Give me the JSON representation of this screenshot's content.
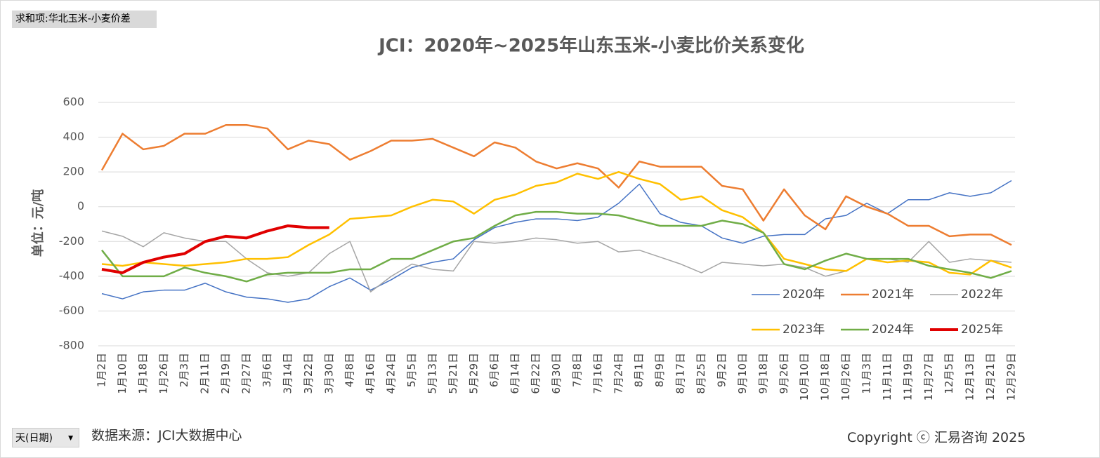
{
  "header": {
    "filter_button": "求和项:华北玉米-小麦价差",
    "field_button": "天(日期)"
  },
  "footer": {
    "source": "数据来源：JCI大数据中心",
    "copyright": "Copyright ⓒ 汇易咨询 2025"
  },
  "chart_data": {
    "type": "line",
    "title": "JCI：2020年~2025年山东玉米-小麦比价关系变化",
    "y_label": "单位：元/吨",
    "categories": [
      "1月2日",
      "1月10日",
      "1月18日",
      "1月26日",
      "2月3日",
      "2月11日",
      "2月19日",
      "2月27日",
      "3月6日",
      "3月14日",
      "3月22日",
      "3月30日",
      "4月8日",
      "4月16日",
      "4月24日",
      "5月5日",
      "5月13日",
      "5月21日",
      "5月29日",
      "6月6日",
      "6月14日",
      "6月22日",
      "6月30日",
      "7月8日",
      "7月16日",
      "7月24日",
      "8月1日",
      "8月9日",
      "8月17日",
      "8月25日",
      "9月2日",
      "9月10日",
      "9月18日",
      "9月26日",
      "10月10日",
      "10月18日",
      "10月26日",
      "11月3日",
      "11月11日",
      "11月19日",
      "11月27日",
      "12月5日",
      "12月13日",
      "12月21日",
      "12月29日"
    ],
    "ylim": [
      -800,
      600
    ],
    "yticks": [
      -800,
      -600,
      -400,
      -200,
      0,
      200,
      400,
      600
    ],
    "grid": true,
    "series": [
      {
        "name": "2020年",
        "color": "#4472c4",
        "width": 1.5,
        "values": [
          -500,
          -530,
          -490,
          -480,
          -480,
          -440,
          -490,
          -520,
          -530,
          -550,
          -530,
          -460,
          -410,
          -480,
          -420,
          -350,
          -320,
          -300,
          -190,
          -120,
          -90,
          -70,
          -70,
          -80,
          -60,
          20,
          130,
          -40,
          -90,
          -110,
          -180,
          -210,
          -170,
          -160,
          -160,
          -70,
          -50,
          20,
          -40,
          40,
          40,
          80,
          60,
          80,
          150
        ]
      },
      {
        "name": "2021年",
        "color": "#ed7d31",
        "width": 2.5,
        "values": [
          210,
          420,
          330,
          350,
          420,
          420,
          470,
          470,
          450,
          330,
          380,
          360,
          270,
          320,
          380,
          380,
          390,
          340,
          290,
          370,
          340,
          260,
          220,
          250,
          220,
          110,
          260,
          230,
          230,
          230,
          120,
          100,
          -80,
          100,
          -50,
          -130,
          60,
          0,
          -40,
          -110,
          -110,
          -170,
          -160,
          -160,
          -220
        ]
      },
      {
        "name": "2022年",
        "color": "#a5a5a5",
        "width": 1.5,
        "values": [
          -140,
          -170,
          -230,
          -150,
          -180,
          -200,
          -200,
          -300,
          -380,
          -400,
          -380,
          -270,
          -200,
          -490,
          -400,
          -330,
          -360,
          -370,
          -200,
          -210,
          -200,
          -180,
          -190,
          -210,
          -200,
          -260,
          -250,
          -290,
          -330,
          -380,
          -320,
          -330,
          -340,
          -330,
          -350,
          -400,
          -370,
          -300,
          -300,
          -320,
          -200,
          -320,
          -300,
          -310,
          -320
        ]
      },
      {
        "name": "2023年",
        "color": "#ffc000",
        "width": 2.5,
        "values": [
          -330,
          -340,
          -320,
          -330,
          -340,
          -330,
          -320,
          -300,
          -300,
          -290,
          -220,
          -160,
          -70,
          -60,
          -50,
          0,
          40,
          30,
          -40,
          40,
          70,
          120,
          140,
          190,
          160,
          200,
          160,
          130,
          40,
          60,
          -20,
          -60,
          -150,
          -300,
          -330,
          -360,
          -370,
          -300,
          -320,
          -310,
          -320,
          -380,
          -390,
          -310,
          -350
        ]
      },
      {
        "name": "2024年",
        "color": "#70ad47",
        "width": 2.5,
        "values": [
          -250,
          -400,
          -400,
          -400,
          -350,
          -380,
          -400,
          -430,
          -390,
          -380,
          -380,
          -380,
          -360,
          -360,
          -300,
          -300,
          -250,
          -200,
          -180,
          -110,
          -50,
          -30,
          -30,
          -40,
          -40,
          -50,
          -80,
          -110,
          -110,
          -110,
          -80,
          -100,
          -150,
          -330,
          -360,
          -310,
          -270,
          -300,
          -300,
          -300,
          -340,
          -360,
          -380,
          -410,
          -370
        ]
      },
      {
        "name": "2025年",
        "color": "#e00000",
        "width": 4,
        "values": [
          -360,
          -380,
          -320,
          -290,
          -270,
          -200,
          -170,
          -180,
          -140,
          -110,
          -120,
          -120,
          null,
          null,
          null,
          null,
          null,
          null,
          null,
          null,
          null,
          null,
          null,
          null,
          null,
          null,
          null,
          null,
          null,
          null,
          null,
          null,
          null,
          null,
          null,
          null,
          null,
          null,
          null,
          null,
          null,
          null,
          null,
          null,
          null
        ]
      }
    ]
  }
}
